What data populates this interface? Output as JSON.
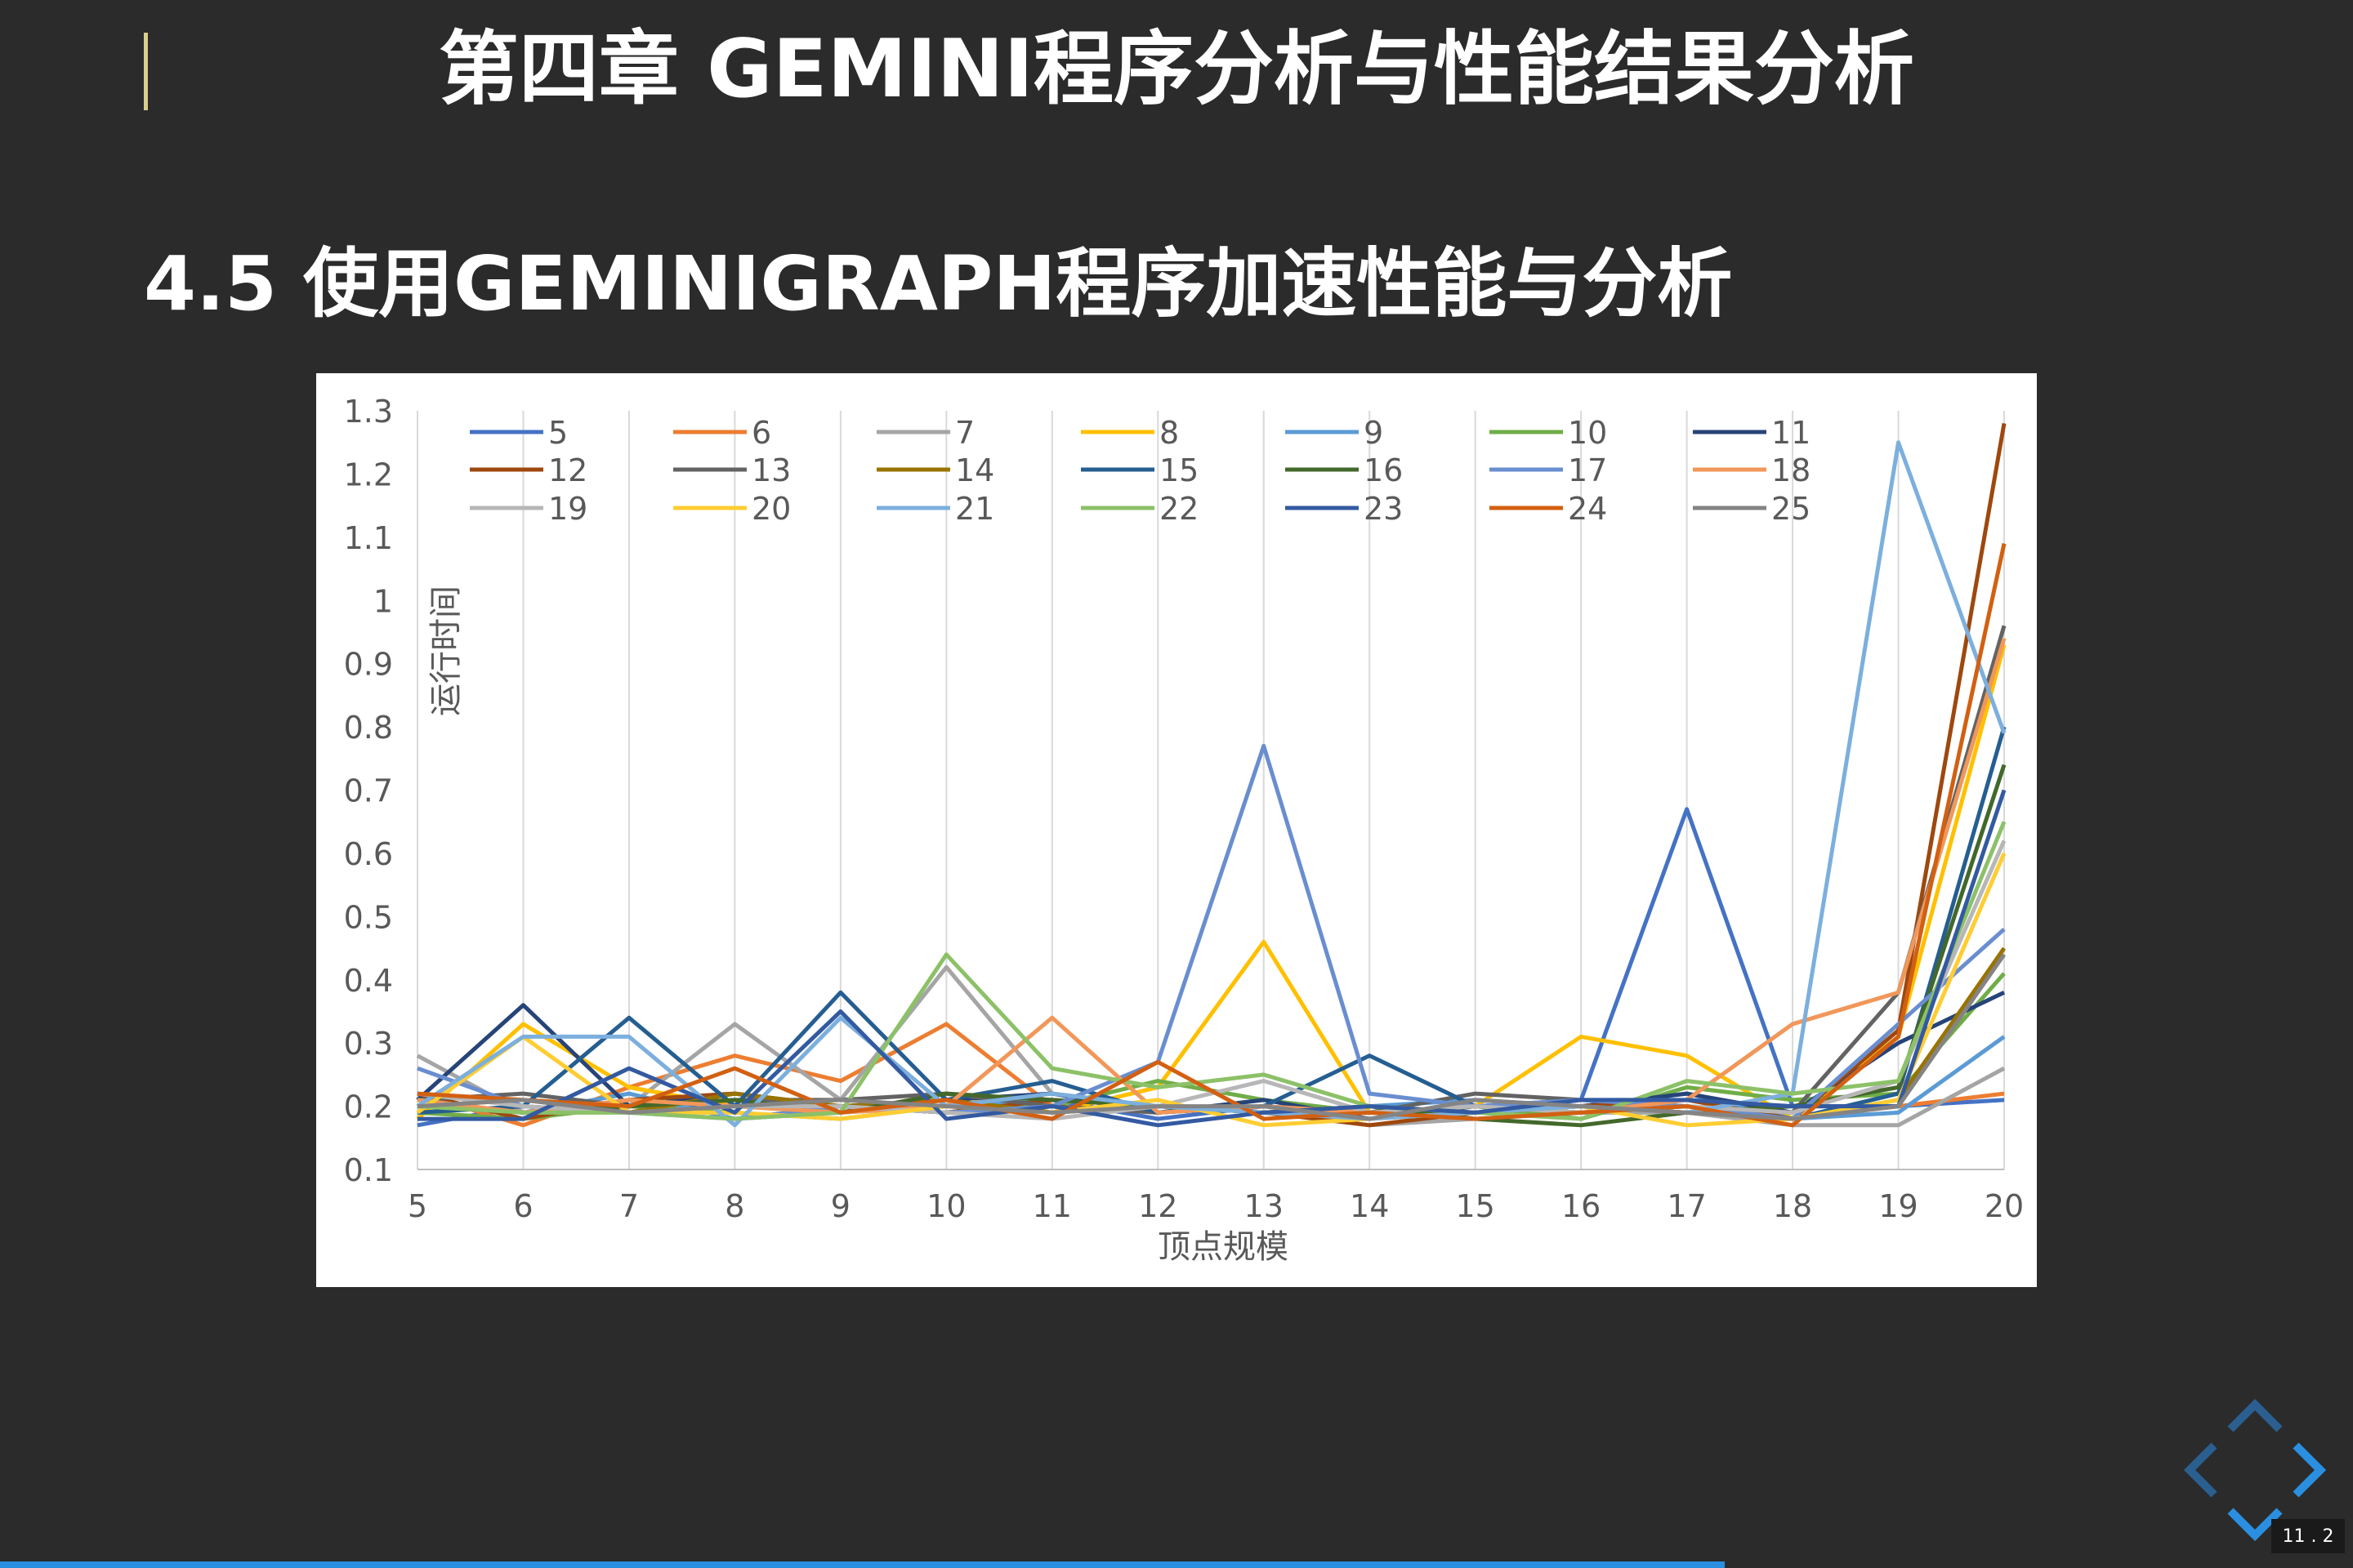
{
  "slide": {
    "title": "第四章 GEMINI程序分析与性能结果分析",
    "subtitle": "4.5 使用GEMINIGRAPH程序加速性能与分析",
    "slide_number": "11 . 2",
    "progress_fraction": 0.733
  },
  "colors": {
    "background": "#2b2b2b",
    "accent": "#d8cf8a",
    "nav": "#2a8fe0"
  },
  "chart_data": {
    "type": "line",
    "title": "",
    "xlabel": "顶点规模",
    "ylabel": "运行时间",
    "x": [
      5,
      6,
      7,
      8,
      9,
      10,
      11,
      12,
      13,
      14,
      15,
      16,
      17,
      18,
      19,
      20
    ],
    "ylim": [
      0.1,
      1.3
    ],
    "yticks": [
      "0.1",
      "0.2",
      "0.3",
      "0.4",
      "0.5",
      "0.6",
      "0.7",
      "0.8",
      "0.9",
      "1",
      "1.1",
      "1.2",
      "1.3"
    ],
    "xticks": [
      "5",
      "6",
      "7",
      "8",
      "9",
      "10",
      "11",
      "12",
      "13",
      "14",
      "15",
      "16",
      "17",
      "18",
      "19",
      "20"
    ],
    "grid": "vertical",
    "legend_position": "top",
    "series": [
      {
        "name": "5",
        "color": "#4472c4",
        "values": [
          0.17,
          0.2,
          0.19,
          0.21,
          0.2,
          0.19,
          0.21,
          0.18,
          0.2,
          0.19,
          0.2,
          0.21,
          0.67,
          0.2,
          0.2,
          0.21
        ]
      },
      {
        "name": "6",
        "color": "#ed7d31",
        "values": [
          0.22,
          0.17,
          0.23,
          0.28,
          0.24,
          0.33,
          0.2,
          0.19,
          0.2,
          0.18,
          0.19,
          0.2,
          0.19,
          0.18,
          0.2,
          0.22
        ]
      },
      {
        "name": "7",
        "color": "#a5a5a5",
        "values": [
          0.28,
          0.19,
          0.2,
          0.33,
          0.21,
          0.42,
          0.22,
          0.2,
          0.19,
          0.17,
          0.18,
          0.19,
          0.19,
          0.17,
          0.17,
          0.26
        ]
      },
      {
        "name": "8",
        "color": "#ffc000",
        "values": [
          0.18,
          0.33,
          0.23,
          0.2,
          0.19,
          0.22,
          0.19,
          0.23,
          0.46,
          0.19,
          0.2,
          0.31,
          0.28,
          0.18,
          0.31,
          0.93
        ]
      },
      {
        "name": "9",
        "color": "#5b9bd5",
        "values": [
          0.2,
          0.19,
          0.22,
          0.18,
          0.19,
          0.2,
          0.21,
          0.2,
          0.19,
          0.2,
          0.21,
          0.2,
          0.22,
          0.18,
          0.19,
          0.31
        ]
      },
      {
        "name": "10",
        "color": "#70ad47",
        "values": [
          0.19,
          0.18,
          0.2,
          0.19,
          0.18,
          0.2,
          0.2,
          0.24,
          0.21,
          0.19,
          0.2,
          0.18,
          0.23,
          0.21,
          0.22,
          0.41
        ]
      },
      {
        "name": "11",
        "color": "#264478",
        "values": [
          0.21,
          0.36,
          0.2,
          0.22,
          0.2,
          0.21,
          0.22,
          0.19,
          0.21,
          0.18,
          0.2,
          0.2,
          0.22,
          0.19,
          0.3,
          0.38
        ]
      },
      {
        "name": "12",
        "color": "#9e480e",
        "values": [
          0.22,
          0.18,
          0.21,
          0.22,
          0.2,
          0.19,
          0.21,
          0.2,
          0.19,
          0.17,
          0.19,
          0.2,
          0.21,
          0.18,
          0.32,
          1.28
        ]
      },
      {
        "name": "13",
        "color": "#636363",
        "values": [
          0.21,
          0.22,
          0.2,
          0.21,
          0.21,
          0.22,
          0.2,
          0.19,
          0.2,
          0.19,
          0.22,
          0.21,
          0.2,
          0.19,
          0.38,
          0.96
        ]
      },
      {
        "name": "14",
        "color": "#997300",
        "values": [
          0.2,
          0.21,
          0.19,
          0.22,
          0.2,
          0.21,
          0.19,
          0.2,
          0.19,
          0.2,
          0.19,
          0.2,
          0.19,
          0.18,
          0.21,
          0.45
        ]
      },
      {
        "name": "15",
        "color": "#255e91",
        "values": [
          0.19,
          0.2,
          0.34,
          0.2,
          0.38,
          0.21,
          0.24,
          0.19,
          0.2,
          0.28,
          0.2,
          0.19,
          0.2,
          0.18,
          0.22,
          0.8
        ]
      },
      {
        "name": "16",
        "color": "#43682b",
        "values": [
          0.2,
          0.19,
          0.2,
          0.21,
          0.19,
          0.22,
          0.21,
          0.2,
          0.19,
          0.2,
          0.18,
          0.17,
          0.19,
          0.2,
          0.23,
          0.74
        ]
      },
      {
        "name": "17",
        "color": "#698ed0",
        "values": [
          0.26,
          0.2,
          0.19,
          0.18,
          0.2,
          0.19,
          0.2,
          0.27,
          0.77,
          0.22,
          0.2,
          0.21,
          0.2,
          0.18,
          0.33,
          0.48
        ]
      },
      {
        "name": "18",
        "color": "#f1975a",
        "values": [
          0.21,
          0.19,
          0.21,
          0.2,
          0.19,
          0.2,
          0.34,
          0.19,
          0.2,
          0.19,
          0.2,
          0.19,
          0.21,
          0.33,
          0.38,
          0.94
        ]
      },
      {
        "name": "19",
        "color": "#b7b7b7",
        "values": [
          0.22,
          0.2,
          0.19,
          0.2,
          0.2,
          0.19,
          0.18,
          0.2,
          0.24,
          0.19,
          0.2,
          0.19,
          0.2,
          0.19,
          0.24,
          0.62
        ]
      },
      {
        "name": "20",
        "color": "#ffcd33",
        "values": [
          0.19,
          0.31,
          0.19,
          0.19,
          0.18,
          0.2,
          0.19,
          0.21,
          0.17,
          0.18,
          0.19,
          0.2,
          0.17,
          0.18,
          0.21,
          0.6
        ]
      },
      {
        "name": "21",
        "color": "#7cafdd",
        "values": [
          0.2,
          0.31,
          0.31,
          0.17,
          0.34,
          0.2,
          0.22,
          0.2,
          0.19,
          0.18,
          0.19,
          0.2,
          0.19,
          0.22,
          1.25,
          0.79
        ]
      },
      {
        "name": "22",
        "color": "#8cc168",
        "values": [
          0.2,
          0.19,
          0.19,
          0.18,
          0.19,
          0.44,
          0.26,
          0.23,
          0.25,
          0.2,
          0.19,
          0.18,
          0.24,
          0.22,
          0.24,
          0.65
        ]
      },
      {
        "name": "23",
        "color": "#335aa1",
        "values": [
          0.18,
          0.18,
          0.26,
          0.19,
          0.35,
          0.18,
          0.2,
          0.17,
          0.19,
          0.2,
          0.19,
          0.21,
          0.21,
          0.2,
          0.2,
          0.7
        ]
      },
      {
        "name": "24",
        "color": "#d26012",
        "values": [
          0.22,
          0.21,
          0.2,
          0.26,
          0.19,
          0.21,
          0.18,
          0.27,
          0.18,
          0.19,
          0.18,
          0.19,
          0.2,
          0.17,
          0.31,
          1.09
        ]
      },
      {
        "name": "25",
        "color": "#848484",
        "values": [
          0.2,
          0.21,
          0.19,
          0.2,
          0.21,
          0.2,
          0.19,
          0.2,
          0.2,
          0.18,
          0.21,
          0.2,
          0.19,
          0.18,
          0.2,
          0.44
        ]
      }
    ]
  }
}
